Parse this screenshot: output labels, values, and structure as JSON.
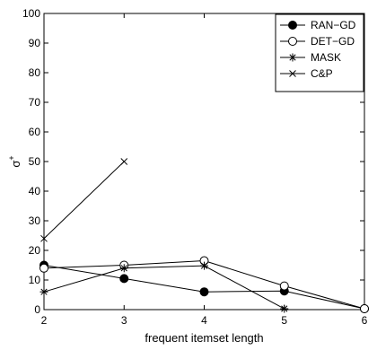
{
  "chart_data": {
    "type": "line",
    "xlabel": "frequent itemset length",
    "ylabel": "σ",
    "ylabel_sup": "+",
    "xlim": [
      2,
      6
    ],
    "ylim": [
      0,
      100
    ],
    "x_ticks": [
      2,
      3,
      4,
      5,
      6
    ],
    "y_ticks": [
      0,
      10,
      20,
      30,
      40,
      50,
      60,
      70,
      80,
      90,
      100
    ],
    "grid": false,
    "legend_position": "top-right",
    "series": [
      {
        "name": "RAN−GD",
        "marker": "filled-circle",
        "x": [
          2,
          3,
          4,
          5,
          6
        ],
        "y": [
          15,
          10.5,
          6,
          6.3,
          0.3
        ]
      },
      {
        "name": "DET−GD",
        "marker": "open-circle",
        "x": [
          2,
          3,
          4,
          5,
          6
        ],
        "y": [
          14,
          15,
          16.5,
          8,
          0.3
        ]
      },
      {
        "name": "MASK",
        "marker": "asterisk",
        "x": [
          2,
          3,
          4,
          5
        ],
        "y": [
          6,
          14,
          14.8,
          0.3
        ]
      },
      {
        "name": "C&P",
        "marker": "cross",
        "x": [
          2,
          3
        ],
        "y": [
          24,
          50
        ]
      }
    ]
  }
}
